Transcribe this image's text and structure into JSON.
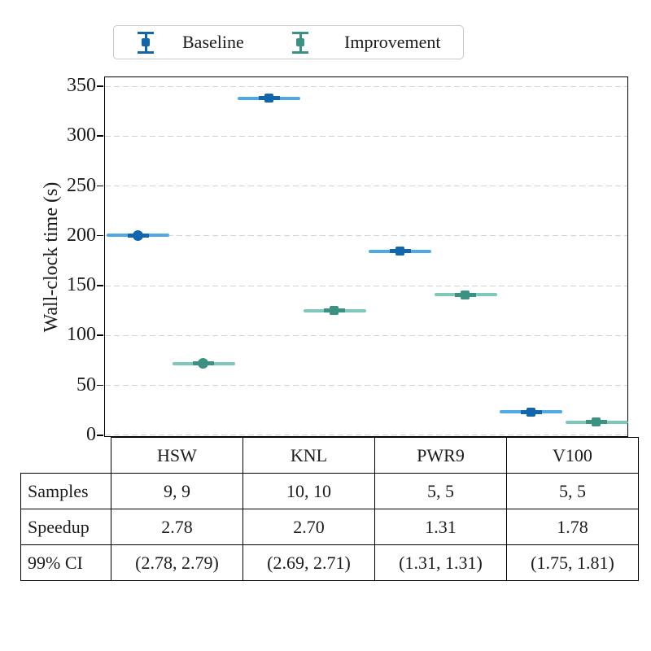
{
  "colors": {
    "baseline_dark": "#1166ac",
    "baseline_light": "#4fa9e6",
    "improvement_dark": "#3b9283",
    "improvement_light": "#7ec8b9",
    "grid": "#d2d2d2",
    "axis": "#000000",
    "legend_border": "#c9c9c9",
    "text": "#1c1c1c"
  },
  "legend": {
    "items": [
      {
        "label": "Baseline",
        "key": "baseline"
      },
      {
        "label": "Improvement",
        "key": "improvement"
      }
    ]
  },
  "chart_data": {
    "type": "scatter",
    "subtype": "errorbar-dot-plot",
    "title": "",
    "xlabel": "",
    "ylabel": "Wall-clock time (s)",
    "ylim": [
      -2.5,
      359
    ],
    "yticks": [
      0,
      50,
      100,
      150,
      200,
      250,
      300,
      350
    ],
    "grid": "horizontal dashed",
    "legend_position": "top outside",
    "categories": [
      "HSW",
      "KNL",
      "PWR9",
      "V100"
    ],
    "category_markers": [
      "circle",
      "square",
      "square",
      "square"
    ],
    "series": [
      {
        "name": "Baseline",
        "key": "baseline",
        "values": [
          200.5,
          338.0,
          184.5,
          23.3
        ]
      },
      {
        "name": "Improvement",
        "key": "improvement",
        "values": [
          72.0,
          125.2,
          140.8,
          13.1
        ]
      }
    ],
    "table": {
      "columns": [
        "HSW",
        "KNL",
        "PWR9",
        "V100"
      ],
      "rows": [
        {
          "label": "Samples",
          "values": [
            "9, 9",
            "10, 10",
            "5, 5",
            "5, 5"
          ]
        },
        {
          "label": "Speedup",
          "values": [
            "2.78",
            "2.70",
            "1.31",
            "1.78"
          ]
        },
        {
          "label": "99% CI",
          "values": [
            "(2.78, 2.79)",
            "(2.69, 2.71)",
            "(1.31, 1.31)",
            "(1.75, 1.81)"
          ]
        }
      ]
    }
  }
}
